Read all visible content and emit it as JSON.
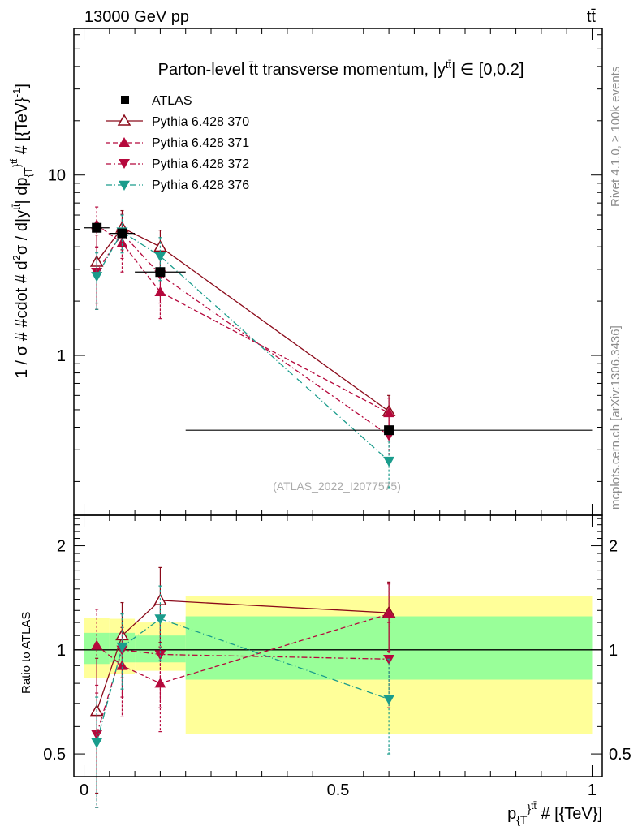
{
  "header": {
    "energy_label": "13000 GeV pp",
    "process_label": "tt̄"
  },
  "side_text": {
    "rivet": "Rivet 4.1.0, ≥ 100k events",
    "mcplots": "mcplots.cern.ch [arXiv:1306.3436]"
  },
  "chart_data": [
    {
      "type": "line",
      "panel": "main",
      "title": "Parton-level t̄t transverse momentum, |yt̄t| ∈ [0,0.2]",
      "title_main": "Parton-level t̄t transverse momentum, |y",
      "title_sup": "tt̄",
      "title_tail": "| ∈ [0,0.2]",
      "ylabel": "1 / σ # #cdot # d²σ / d|yt̄t| dp_{T}t̄t # [{TeV}⁻¹]",
      "ylabel_main": "1 / σ # #cdot # d",
      "ylabel_sup1": "2",
      "ylabel_mid": "σ / d|y",
      "ylabel_sup2": "tt̄",
      "ylabel_mid2": "| dp",
      "ylabel_sub": "{T",
      "ylabel_sup3": "}",
      "ylabel_sup4": "tt̄",
      "ylabel_tail": " # [{TeV}",
      "ylabel_sup5": "-1",
      "ylabel_end": "]",
      "yscale": "log",
      "ylim": [
        0.13,
        65
      ],
      "xlim": [
        -0.02,
        1.02
      ],
      "ytick_labels": [
        "1",
        "10"
      ],
      "ytick_values": [
        1,
        10
      ],
      "reference_label": "(ATLAS_2022_I2077575)",
      "data": {
        "name": "ATLAS",
        "color": "#000000",
        "x": [
          0.025,
          0.075,
          0.15,
          0.6
        ],
        "xerr": [
          0.025,
          0.025,
          0.05,
          0.4
        ],
        "y": [
          5.1,
          4.75,
          2.9,
          0.385
        ]
      },
      "series": [
        {
          "name": "Pythia 6.428 370",
          "color": "#8b0a1a",
          "marker": "triangle-up-open",
          "dash": "solid",
          "x": [
            0.025,
            0.075,
            0.15,
            0.6
          ],
          "y": [
            3.3,
            5.1,
            4.0,
            0.49
          ],
          "err": [
            1.35,
            1.25,
            0.95,
            0.11
          ]
        },
        {
          "name": "Pythia 6.428 371",
          "color": "#b5083c",
          "marker": "triangle-up",
          "dash": "6,3",
          "x": [
            0.025,
            0.075,
            0.15,
            0.6
          ],
          "y": [
            5.3,
            4.2,
            2.25,
            0.48
          ],
          "err": [
            1.35,
            1.3,
            0.65,
            0.1
          ]
        },
        {
          "name": "Pythia 6.428 372",
          "color": "#b5083c",
          "marker": "triangle-down",
          "dash": "7,3,2,3",
          "x": [
            0.025,
            0.075,
            0.15,
            0.6
          ],
          "y": [
            2.9,
            4.75,
            2.8,
            0.36
          ],
          "err": [
            1.1,
            1.3,
            0.85,
            0.1
          ]
        },
        {
          "name": "Pythia 6.428 376",
          "color": "#1a9c8c",
          "marker": "triangle-down",
          "dash": "8,3,1,3",
          "x": [
            0.025,
            0.075,
            0.15,
            0.6
          ],
          "y": [
            2.75,
            4.85,
            3.55,
            0.26
          ],
          "err": [
            0.95,
            1.15,
            0.95,
            0.075
          ]
        }
      ]
    },
    {
      "type": "line",
      "panel": "ratio",
      "ylabel": "Ratio to ATLAS",
      "yscale": "log",
      "ylim": [
        0.43,
        2.45
      ],
      "xlim": [
        -0.02,
        1.02
      ],
      "xlabel": "p_{T}tt̄ # [{TeV}]",
      "xlabel_main": "p",
      "xlabel_sub": "{T",
      "xlabel_mid": "}",
      "xlabel_sup": "tt̄",
      "xlabel_tail": " # [{TeV}]",
      "xtick_labels": [
        "0",
        "0.5",
        "1"
      ],
      "xtick_values": [
        0,
        0.5,
        1
      ],
      "ytick_labels": [
        "0.5",
        "1",
        "2"
      ],
      "ytick_values": [
        0.5,
        1,
        2
      ],
      "bands": {
        "bins": [
          [
            0.0,
            0.05
          ],
          [
            0.05,
            0.1
          ],
          [
            0.1,
            0.2
          ],
          [
            0.2,
            1.0
          ]
        ],
        "stat_color": "#99ff99",
        "total_color": "#ffff99",
        "stat_low": [
          0.91,
          0.92,
          0.92,
          0.82
        ],
        "stat_high": [
          1.12,
          1.12,
          1.1,
          1.25
        ],
        "total_low": [
          0.83,
          0.85,
          0.87,
          0.57
        ],
        "total_high": [
          1.24,
          1.23,
          1.2,
          1.43
        ]
      },
      "series": [
        {
          "name": "Pythia 6.428 370",
          "x": [
            0.025,
            0.075,
            0.15,
            0.6
          ],
          "y": [
            0.665,
            1.1,
            1.39,
            1.28
          ],
          "err": [
            0.28,
            0.27,
            0.34,
            0.29
          ]
        },
        {
          "name": "Pythia 6.428 371",
          "x": [
            0.025,
            0.075,
            0.15,
            0.6
          ],
          "y": [
            1.03,
            0.9,
            0.8,
            1.27
          ],
          "err": [
            0.28,
            0.26,
            0.22,
            0.28
          ]
        },
        {
          "name": "Pythia 6.428 372",
          "x": [
            0.025,
            0.075,
            0.15,
            0.6
          ],
          "y": [
            0.57,
            1.0,
            0.97,
            0.94
          ],
          "err": [
            0.22,
            0.27,
            0.29,
            0.26
          ]
        },
        {
          "name": "Pythia 6.428 376",
          "x": [
            0.025,
            0.075,
            0.15,
            0.6
          ],
          "y": [
            0.54,
            1.02,
            1.23,
            0.72
          ],
          "err": [
            0.19,
            0.25,
            0.3,
            0.22
          ]
        }
      ]
    }
  ]
}
